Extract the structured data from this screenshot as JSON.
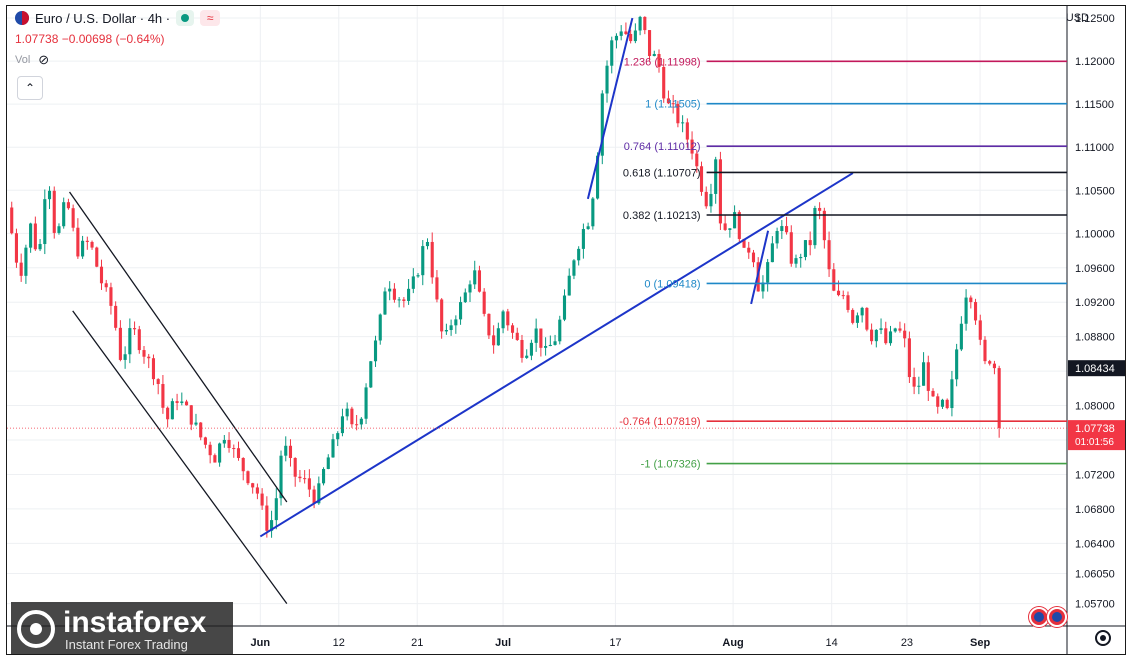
{
  "header": {
    "symbol": "Euro / U.S. Dollar · 4h ·",
    "last_price": "1.07738",
    "change": "−0.00698 (−0.64%)",
    "volume_label": "Vol",
    "currency": "USD",
    "collapse_glyph": "⌃",
    "wave_glyph": "≈"
  },
  "colors": {
    "up": "#089981",
    "down": "#f23645",
    "trend": "#1d35c9",
    "channel": "#131722",
    "grid": "#eef0f3"
  },
  "chart_data": {
    "type": "candlestick",
    "ylim": [
      1.0544,
      1.1264
    ],
    "y_ticks": [
      "1.12500",
      "1.12000",
      "1.11500",
      "1.11000",
      "1.10500",
      "1.10000",
      "1.09600",
      "1.09200",
      "1.08800",
      "1.08400",
      "1.08000",
      "1.07600",
      "1.07200",
      "1.06800",
      "1.06400",
      "1.06050",
      "1.05700"
    ],
    "x_ticks": [
      {
        "label": "Jun",
        "x": 0.239
      },
      {
        "label": "12",
        "x": 0.313
      },
      {
        "label": "21",
        "x": 0.387
      },
      {
        "label": "Jul",
        "x": 0.468
      },
      {
        "label": "17",
        "x": 0.574
      },
      {
        "label": "Aug",
        "x": 0.685
      },
      {
        "label": "14",
        "x": 0.778
      },
      {
        "label": "23",
        "x": 0.849
      },
      {
        "label": "Sep",
        "x": 0.918
      }
    ],
    "price_path": [
      [
        0.0,
        1.103
      ],
      [
        0.012,
        1.095
      ],
      [
        0.022,
        1.101
      ],
      [
        0.03,
        1.097
      ],
      [
        0.038,
        1.108
      ],
      [
        0.046,
        1.099
      ],
      [
        0.056,
        1.104
      ],
      [
        0.066,
        1.098
      ],
      [
        0.078,
        1.099
      ],
      [
        0.09,
        1.094
      ],
      [
        0.1,
        1.091
      ],
      [
        0.108,
        1.085
      ],
      [
        0.118,
        1.089
      ],
      [
        0.13,
        1.086
      ],
      [
        0.142,
        1.083
      ],
      [
        0.15,
        1.078
      ],
      [
        0.16,
        1.081
      ],
      [
        0.172,
        1.079
      ],
      [
        0.184,
        1.076
      ],
      [
        0.196,
        1.074
      ],
      [
        0.206,
        1.077
      ],
      [
        0.216,
        1.074
      ],
      [
        0.226,
        1.072
      ],
      [
        0.236,
        1.07
      ],
      [
        0.244,
        1.066
      ],
      [
        0.252,
        1.067
      ],
      [
        0.26,
        1.076
      ],
      [
        0.27,
        1.072
      ],
      [
        0.282,
        1.071
      ],
      [
        0.292,
        1.069
      ],
      [
        0.3,
        1.073
      ],
      [
        0.31,
        1.076
      ],
      [
        0.318,
        1.08
      ],
      [
        0.326,
        1.077
      ],
      [
        0.334,
        1.079
      ],
      [
        0.342,
        1.085
      ],
      [
        0.35,
        1.088
      ],
      [
        0.358,
        1.095
      ],
      [
        0.366,
        1.093
      ],
      [
        0.376,
        1.092
      ],
      [
        0.386,
        1.095
      ],
      [
        0.396,
        1.1
      ],
      [
        0.404,
        1.093
      ],
      [
        0.412,
        1.087
      ],
      [
        0.42,
        1.09
      ],
      [
        0.43,
        1.092
      ],
      [
        0.44,
        1.096
      ],
      [
        0.45,
        1.09
      ],
      [
        0.46,
        1.087
      ],
      [
        0.468,
        1.091
      ],
      [
        0.478,
        1.088
      ],
      [
        0.488,
        1.086
      ],
      [
        0.498,
        1.089
      ],
      [
        0.508,
        1.086
      ],
      [
        0.518,
        1.088
      ],
      [
        0.526,
        1.092
      ],
      [
        0.534,
        1.097
      ],
      [
        0.542,
        1.1
      ],
      [
        0.55,
        1.102
      ],
      [
        0.556,
        1.108
      ],
      [
        0.562,
        1.117
      ],
      [
        0.57,
        1.122
      ],
      [
        0.58,
        1.124
      ],
      [
        0.59,
        1.122
      ],
      [
        0.598,
        1.125
      ],
      [
        0.606,
        1.121
      ],
      [
        0.614,
        1.12
      ],
      [
        0.622,
        1.115
      ],
      [
        0.63,
        1.114
      ],
      [
        0.638,
        1.112
      ],
      [
        0.646,
        1.11
      ],
      [
        0.654,
        1.106
      ],
      [
        0.662,
        1.103
      ],
      [
        0.668,
        1.11
      ],
      [
        0.674,
        1.1
      ],
      [
        0.68,
        1.101
      ],
      [
        0.688,
        1.102
      ],
      [
        0.696,
        1.097
      ],
      [
        0.702,
        1.099
      ],
      [
        0.71,
        1.093
      ],
      [
        0.718,
        1.096
      ],
      [
        0.726,
        1.101
      ],
      [
        0.734,
        1.1
      ],
      [
        0.742,
        1.096
      ],
      [
        0.75,
        1.098
      ],
      [
        0.758,
        1.099
      ],
      [
        0.764,
        1.104
      ],
      [
        0.77,
        1.1
      ],
      [
        0.776,
        1.095
      ],
      [
        0.782,
        1.092
      ],
      [
        0.79,
        1.093
      ],
      [
        0.798,
        1.09
      ],
      [
        0.806,
        1.092
      ],
      [
        0.814,
        1.088
      ],
      [
        0.822,
        1.089
      ],
      [
        0.83,
        1.087
      ],
      [
        0.838,
        1.089
      ],
      [
        0.846,
        1.088
      ],
      [
        0.852,
        1.083
      ],
      [
        0.858,
        1.081
      ],
      [
        0.864,
        1.085
      ],
      [
        0.87,
        1.082
      ],
      [
        0.876,
        1.079
      ],
      [
        0.882,
        1.08
      ],
      [
        0.888,
        1.079
      ],
      [
        0.894,
        1.085
      ],
      [
        0.9,
        1.09
      ],
      [
        0.906,
        1.094
      ],
      [
        0.912,
        1.092
      ],
      [
        0.918,
        1.087
      ],
      [
        0.924,
        1.084
      ],
      [
        0.93,
        1.087
      ],
      [
        0.936,
        1.0774
      ]
    ],
    "last_price_marker": {
      "value": 1.07738,
      "label": "1.07738",
      "timer": "01:01:56"
    },
    "price_marker": {
      "value": 1.08434,
      "label": "1.08434"
    },
    "fib_levels": [
      {
        "label": "1.236 (1.11998)",
        "value": 1.11998,
        "color": "#c2185b"
      },
      {
        "label": "1 (1.11505)",
        "value": 1.11505,
        "color": "#1e88c7"
      },
      {
        "label": "0.764 (1.11012)",
        "value": 1.11012,
        "color": "#5e2ca5"
      },
      {
        "label": "0.618 (1.10707)",
        "value": 1.10707,
        "color": "#131722"
      },
      {
        "label": "0.382 (1.10213)",
        "value": 1.10213,
        "color": "#131722"
      },
      {
        "label": "0 (1.09418)",
        "value": 1.09418,
        "color": "#1e88c7"
      },
      {
        "label": "-0.764 (1.07819)",
        "value": 1.07819,
        "color": "#e5303c"
      },
      {
        "label": "-1 (1.07326)",
        "value": 1.07326,
        "color": "#43a047"
      }
    ],
    "trend_lines": [
      {
        "name": "support",
        "from": [
          0.239,
          1.0648
        ],
        "to": [
          0.798,
          1.107
        ],
        "color": "#1d35c9"
      },
      {
        "name": "impulse",
        "from": [
          0.548,
          1.104
        ],
        "to": [
          0.59,
          1.125
        ],
        "color": "#1d35c9"
      },
      {
        "name": "retrace",
        "from": [
          0.702,
          1.0918
        ],
        "to": [
          0.718,
          1.1003
        ],
        "color": "#1d35c9"
      }
    ],
    "channel_lines": [
      {
        "from": [
          0.059,
          1.1048
        ],
        "to": [
          0.264,
          1.0688
        ]
      },
      {
        "from": [
          0.062,
          1.091
        ],
        "to": [
          0.264,
          1.057
        ]
      }
    ],
    "fib_anchor_x": 0.66
  },
  "brand": {
    "name": "instaforex",
    "tagline": "Instant Forex Trading"
  }
}
